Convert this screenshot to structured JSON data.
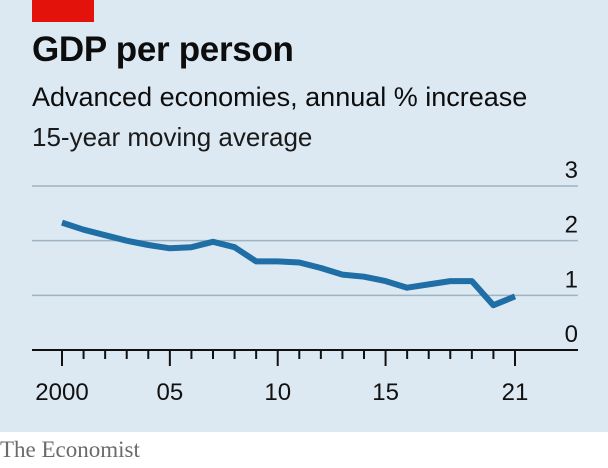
{
  "header": {
    "title": "GDP per person",
    "subtitle": "Advanced economies, annual % increase",
    "note": "15-year moving average"
  },
  "footer": {
    "source": "The Economist"
  },
  "colors": {
    "line": "#1f6ea6",
    "accent": "#e3120b",
    "background": "#dce9f2"
  },
  "chart_data": {
    "type": "line",
    "title": "GDP per person",
    "subtitle": "Advanced economies, annual % increase",
    "xlabel": "",
    "ylabel": "",
    "xlim": [
      2000,
      2021
    ],
    "ylim": [
      0,
      3
    ],
    "grid": true,
    "yticks": [
      0,
      1,
      2,
      3
    ],
    "ytick_labels": [
      "0",
      "1",
      "2",
      "3"
    ],
    "xtick_labels": [
      {
        "x": 2000,
        "label": "2000"
      },
      {
        "x": 2005,
        "label": "05"
      },
      {
        "x": 2010,
        "label": "10"
      },
      {
        "x": 2015,
        "label": "15"
      },
      {
        "x": 2021,
        "label": "21"
      }
    ],
    "series": [
      {
        "x": [
          2000,
          2001,
          2002,
          2003,
          2004,
          2005,
          2006,
          2007,
          2008,
          2009,
          2010,
          2011,
          2012,
          2013,
          2014,
          2015,
          2016,
          2017,
          2018,
          2019,
          2020,
          2021
        ],
        "values": [
          2.33,
          2.2,
          2.1,
          2.0,
          1.92,
          1.86,
          1.88,
          1.98,
          1.88,
          1.62,
          1.62,
          1.6,
          1.5,
          1.38,
          1.34,
          1.26,
          1.14,
          1.2,
          1.26,
          1.26,
          0.82,
          0.98
        ]
      }
    ]
  }
}
